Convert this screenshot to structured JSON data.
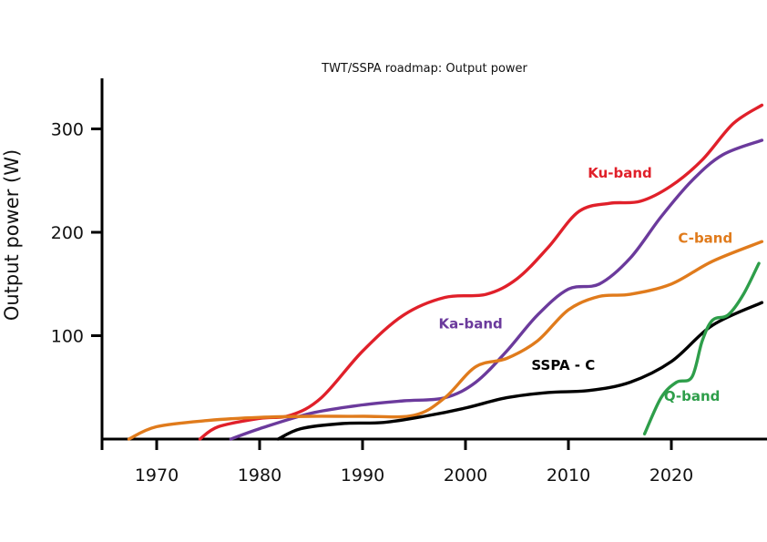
{
  "chart_data": {
    "type": "line",
    "title": "TWT/SSPA roadmap: Output power",
    "xlabel": "",
    "ylabel": "Output power (W)",
    "xlim": [
      1965,
      2030
    ],
    "ylim": [
      0,
      350
    ],
    "xticks": [
      1970,
      1980,
      1990,
      2000,
      2010,
      2020
    ],
    "yticks": [
      100,
      200,
      300
    ],
    "grid": false,
    "legend": "inline labels",
    "series": [
      {
        "name": "Ku-band",
        "color": "#e0202a",
        "x": [
          1974.2,
          1976,
          1980,
          1983,
          1986,
          1990,
          1994,
          1998,
          2002,
          2005,
          2008,
          2011,
          2014,
          2017,
          2020,
          2023,
          2026,
          2028.8
        ],
        "values": [
          0,
          12,
          20,
          23,
          40,
          85,
          120,
          137,
          140,
          155,
          185,
          220,
          228,
          230,
          245,
          270,
          305,
          323
        ]
      },
      {
        "name": "Ka-band",
        "color": "#6b3a9c",
        "x": [
          1977.2,
          1980,
          1985,
          1990,
          1994,
          1998,
          2001,
          2004,
          2007,
          2010,
          2013,
          2016,
          2019,
          2022,
          2025,
          2028.8
        ],
        "values": [
          0,
          10,
          25,
          33,
          37,
          40,
          55,
          85,
          120,
          145,
          150,
          175,
          215,
          250,
          275,
          289
        ]
      },
      {
        "name": "C-band",
        "color": "#e07b1c",
        "x": [
          1967.3,
          1970,
          1975,
          1980,
          1985,
          1990,
          1995,
          1998,
          2001,
          2004,
          2007,
          2010,
          2013,
          2016,
          2020,
          2024,
          2028.8
        ],
        "values": [
          0,
          12,
          18,
          21,
          22,
          22,
          23,
          40,
          70,
          78,
          95,
          125,
          138,
          140,
          150,
          172,
          191
        ]
      },
      {
        "name": "SSPA - C",
        "color": "#000000",
        "x": [
          1981.8,
          1984,
          1988,
          1992,
          1996,
          2000,
          2004,
          2008,
          2012,
          2016,
          2020,
          2024,
          2028.8
        ],
        "values": [
          0,
          10,
          15,
          16,
          22,
          30,
          40,
          45,
          47,
          55,
          75,
          110,
          132
        ]
      },
      {
        "name": "Q-band",
        "color": "#2e9e4a",
        "x": [
          2017.4,
          2019,
          2020.5,
          2022,
          2023,
          2024,
          2025.5,
          2027,
          2028.5
        ],
        "values": [
          5,
          40,
          55,
          60,
          95,
          115,
          120,
          140,
          170
        ]
      }
    ],
    "series_labels": [
      {
        "text": "Ku-band",
        "x": 2015,
        "y": 253
      },
      {
        "text": "Ka-band",
        "x": 2000.5,
        "y": 107
      },
      {
        "text": "C-band",
        "x": 2023.3,
        "y": 190
      },
      {
        "text": "SSPA - C",
        "x": 2009.5,
        "y": 67
      },
      {
        "text": "Q-band",
        "x": 2022,
        "y": 37
      }
    ]
  }
}
